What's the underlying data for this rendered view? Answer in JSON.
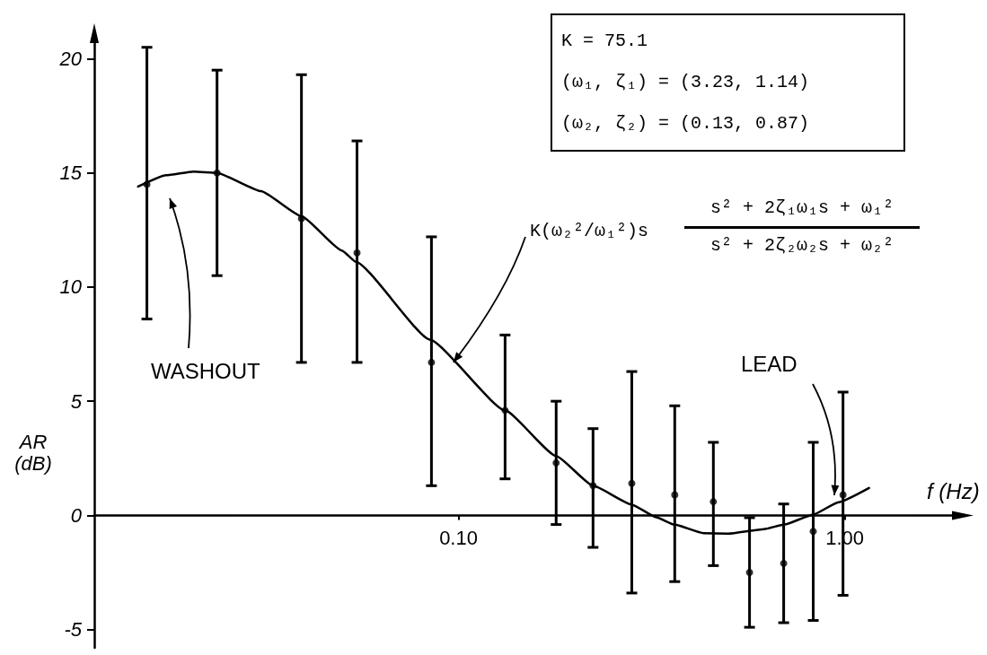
{
  "chart_data": {
    "type": "scatter",
    "xlabel": "f (Hz)",
    "ylabel": "AR (dB)",
    "log": "x",
    "xlim": [
      0.0114,
      2.0
    ],
    "ylim": [
      -5.8,
      21
    ],
    "xticks": [
      {
        "value": 0.1,
        "label": "0.10"
      },
      {
        "value": 1,
        "label": "1.00"
      }
    ],
    "yticks": [
      -5,
      0,
      5,
      10,
      15,
      20
    ],
    "grid": false,
    "marker": "circle",
    "series": [
      {
        "color": "#000000",
        "x": [
          0.0156,
          0.0237,
          0.0392,
          0.0546,
          0.0851,
          0.132,
          0.179,
          0.223,
          0.281,
          0.363,
          0.457,
          0.567,
          0.695,
          0.829,
          0.99
        ],
        "values": [
          14.5,
          15.0,
          13.0,
          11.5,
          6.7,
          4.6,
          2.3,
          1.3,
          1.4,
          0.9,
          0.6,
          -2.5,
          -2.1,
          -0.7,
          0.9
        ],
        "errors": [
          [
            8.6,
            20.5
          ],
          [
            10.5,
            19.5
          ],
          [
            6.7,
            19.3
          ],
          [
            6.7,
            16.4
          ],
          [
            1.3,
            12.2
          ],
          [
            1.6,
            7.9
          ],
          [
            -0.4,
            5.0
          ],
          [
            -1.4,
            3.8
          ],
          [
            -3.4,
            6.3
          ],
          [
            -2.9,
            4.8
          ],
          [
            -2.2,
            3.2
          ],
          [
            -4.9,
            -0.1
          ],
          [
            -4.7,
            0.5
          ],
          [
            -4.6,
            3.2
          ],
          [
            -3.5,
            5.4
          ]
        ]
      },
      {
        "type": "line",
        "color": "#000000",
        "marker": "none",
        "line_style": "solid",
        "x": [
          0.0148,
          0.0175,
          0.0206,
          0.0237,
          0.0308,
          0.0392,
          0.0499,
          0.0543,
          0.0843,
          0.132,
          0.179,
          0.223,
          0.281,
          0.325,
          0.362,
          0.431,
          0.499,
          0.618,
          0.698,
          0.83,
          0.964,
          1.156
        ],
        "values": [
          14.4,
          14.9,
          15.06,
          15.0,
          14.2,
          13.1,
          11.6,
          11.1,
          7.7,
          4.6,
          2.6,
          1.3,
          0.47,
          -0.08,
          -0.4,
          -0.78,
          -0.8,
          -0.6,
          -0.4,
          0.04,
          0.58,
          1.2
        ]
      }
    ],
    "annotations": [
      "K = 75.1\n(ω₁, ζ₁) = (3.23, 1.14)\n(ω₂, ζ₂) = (0.13, 0.87)",
      {
        "text": "K(ω₂²/ω₁²)s",
        "x": 0.097,
        "y": 6.7
      },
      "s² + 2ζ₁ω₁s + ω₁²",
      "s² + 2ζ₂ω₂s + ω₂²",
      "WASHOUT",
      "LEAD"
    ]
  }
}
